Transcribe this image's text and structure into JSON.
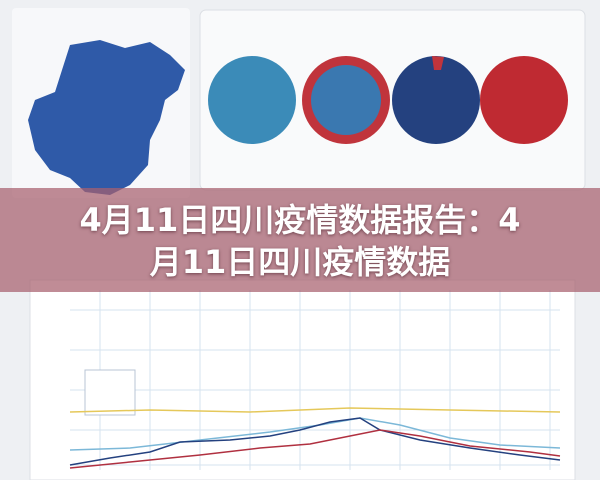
{
  "banner": {
    "title": "4月11日四川疫情数据报告：4月11日四川疫情数据"
  }
}
